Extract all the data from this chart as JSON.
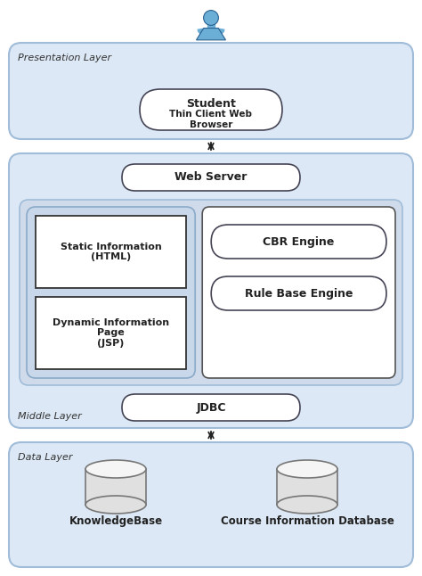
{
  "bg_color": "#ffffff",
  "layer_fill": "#dce8f5",
  "layer_edge": "#a0bcd8",
  "inner_fill": "#cfdaea",
  "left_sub_fill": "#c8d8ea",
  "left_sub_edge": "#8aaac8",
  "right_sub_fill": "#ffffff",
  "right_sub_edge": "#555555",
  "box_fill": "#ffffff",
  "box_edge": "#333333",
  "pill_fill": "#ffffff",
  "pill_edge": "#444455",
  "arrow_color": "#222222",
  "text_color": "#222222",
  "label_color": "#333333",
  "presentation_label": "Presentation Layer",
  "middle_label": "Middle Layer",
  "data_label": "Data Layer",
  "student_label": "Student",
  "browser_label": "Thin Client Web\nBrowser",
  "webserver_label": "Web Server",
  "jdbc_label": "JDBC",
  "static_label": "Static Information\n(HTML)",
  "dynamic_label": "Dynamic Information\nPage\n(JSP)",
  "cbr_label": "CBR Engine",
  "rule_label": "Rule Base Engine",
  "kb_label": "KnowledgeBase",
  "cid_label": "Course Information Database",
  "person_color": "#6baed6",
  "person_edge": "#2a6090",
  "db_face": "#e0e0e0",
  "db_top": "#f5f5f5",
  "db_edge": "#777777",
  "figure_width": 4.74,
  "figure_height": 6.46
}
